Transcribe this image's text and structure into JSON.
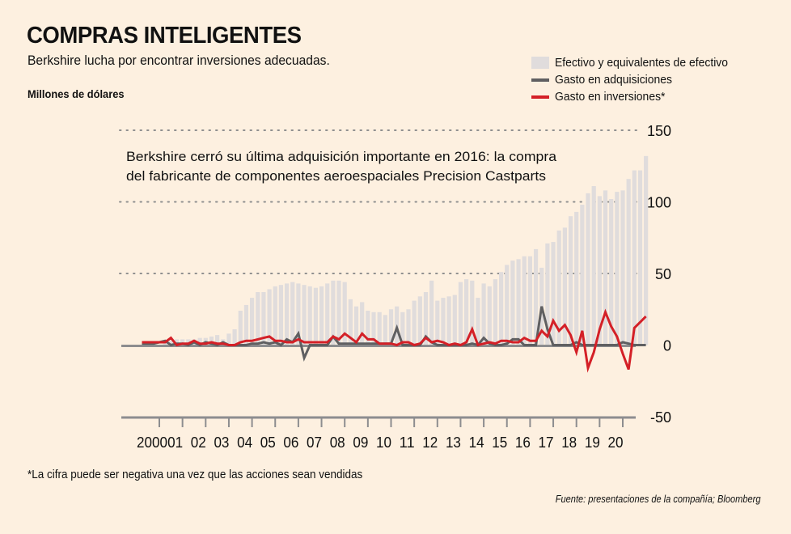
{
  "header": {
    "title": "COMPRAS INTELIGENTES",
    "subtitle": "Berkshire lucha por encontrar inversiones adecuadas.",
    "units": "Millones de dólares"
  },
  "legend": [
    {
      "label": "Efectivo y equivalentes de efectivo",
      "type": "bar",
      "color": "#e0dcdc"
    },
    {
      "label": "Gasto en adquisiciones",
      "type": "line",
      "color": "#5f5f61"
    },
    {
      "label": "Gasto en inversiones*",
      "type": "line",
      "color": "#d42027"
    }
  ],
  "footnote": "*La cifra puede ser negativa una vez que las acciones sean vendidas",
  "source": "Fuente: presentaciones de la compañía; Bloomberg",
  "chart_data": {
    "type": "bar",
    "title": "COMPRAS INTELIGENTES",
    "ylabel": "Millones de dólares",
    "xlabel": "",
    "ylim": [
      -50,
      150
    ],
    "yticks": [
      "150",
      "100",
      "50",
      "0",
      "-50"
    ],
    "ytick_values": [
      150,
      100,
      50,
      0,
      -50
    ],
    "xticks": [
      "2000",
      "01",
      "02",
      "03",
      "04",
      "05",
      "06",
      "07",
      "08",
      "09",
      "10",
      "11",
      "12",
      "13",
      "14",
      "15",
      "16",
      "17",
      "18",
      "19",
      "20"
    ],
    "xtick_values": [
      2000,
      2001,
      2002,
      2003,
      2004,
      2005,
      2006,
      2007,
      2008,
      2009,
      2010,
      2011,
      2012,
      2013,
      2014,
      2015,
      2016,
      2017,
      2018,
      2019,
      2020
    ],
    "grid": "dotted horizontal at 50, 100, 150",
    "legend_position": "top-right",
    "annotation": "Berkshire cerró su última adquisición importante en 2016: la compra del fabricante de componentes aeroespaciales Precision Castparts",
    "x_start": 1999.25,
    "x_step": 0.25,
    "series": [
      {
        "name": "Efectivo y equivalentes de efectivo",
        "kind": "bar",
        "color": "#e0dcdc",
        "values": [
          0,
          0,
          0,
          0,
          2,
          3,
          4,
          4,
          4,
          4,
          5,
          5,
          6,
          7,
          4,
          8,
          11,
          24,
          28,
          33,
          37,
          37,
          39,
          41,
          42,
          43,
          44,
          43,
          42,
          41,
          40,
          41,
          43,
          45,
          45,
          44,
          32,
          27,
          30,
          24,
          23,
          23,
          21,
          25,
          27,
          23,
          25,
          31,
          34,
          37,
          45,
          31,
          33,
          34,
          35,
          44,
          46,
          45,
          33,
          43,
          41,
          46,
          51,
          56,
          59,
          60,
          62,
          62,
          67,
          54,
          71,
          72,
          80,
          82,
          90,
          93,
          98,
          106,
          111,
          104,
          108,
          102,
          107,
          108,
          116,
          122,
          122,
          132
        ]
      },
      {
        "name": "Gasto en adquisiciones",
        "kind": "line",
        "color": "#5f5f61",
        "values": [
          1,
          1,
          1,
          2,
          3,
          0,
          1,
          1,
          0,
          2,
          0,
          2,
          1,
          0,
          2,
          0,
          0,
          0,
          0,
          1,
          1,
          2,
          1,
          2,
          0,
          4,
          2,
          8,
          -9,
          0,
          0,
          0,
          0,
          6,
          1,
          1,
          1,
          1,
          1,
          1,
          1,
          1,
          1,
          1,
          12,
          0,
          0,
          0,
          0,
          6,
          2,
          0,
          0,
          0,
          0,
          0,
          0,
          1,
          0,
          5,
          1,
          0,
          0,
          1,
          4,
          4,
          0,
          0,
          0,
          27,
          11,
          0,
          0,
          0,
          0,
          2,
          0,
          0,
          0,
          0,
          0,
          0,
          0,
          2,
          1,
          0,
          0,
          0
        ]
      },
      {
        "name": "Gasto en inversiones*",
        "kind": "line",
        "color": "#d42027",
        "values": [
          2,
          2,
          2,
          2,
          2,
          5,
          0,
          1,
          1,
          3,
          1,
          1,
          2,
          1,
          1,
          0,
          0,
          2,
          3,
          3,
          4,
          5,
          6,
          3,
          3,
          2,
          2,
          4,
          2,
          2,
          2,
          2,
          2,
          6,
          4,
          8,
          5,
          2,
          8,
          4,
          4,
          1,
          1,
          1,
          0,
          2,
          2,
          0,
          1,
          5,
          2,
          3,
          2,
          0,
          1,
          0,
          2,
          11,
          0,
          1,
          2,
          1,
          3,
          3,
          2,
          2,
          5,
          3,
          3,
          10,
          6,
          17,
          10,
          14,
          7,
          -5,
          10,
          -16,
          -5,
          11,
          23,
          13,
          6,
          -6,
          -17,
          12,
          16,
          20
        ]
      }
    ]
  }
}
